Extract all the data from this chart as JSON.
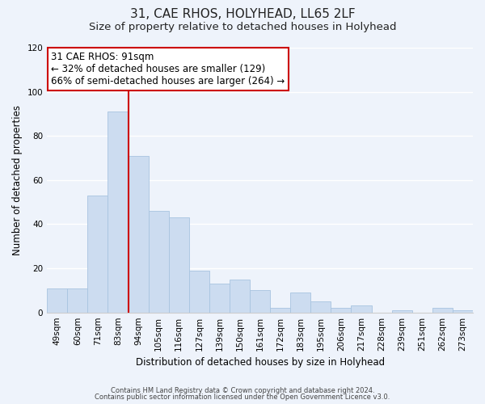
{
  "title": "31, CAE RHOS, HOLYHEAD, LL65 2LF",
  "subtitle": "Size of property relative to detached houses in Holyhead",
  "xlabel": "Distribution of detached houses by size in Holyhead",
  "ylabel": "Number of detached properties",
  "bar_labels": [
    "49sqm",
    "60sqm",
    "71sqm",
    "83sqm",
    "94sqm",
    "105sqm",
    "116sqm",
    "127sqm",
    "139sqm",
    "150sqm",
    "161sqm",
    "172sqm",
    "183sqm",
    "195sqm",
    "206sqm",
    "217sqm",
    "228sqm",
    "239sqm",
    "251sqm",
    "262sqm",
    "273sqm"
  ],
  "bar_values": [
    11,
    11,
    53,
    91,
    71,
    46,
    43,
    19,
    13,
    15,
    10,
    2,
    9,
    5,
    2,
    3,
    0,
    1,
    0,
    2,
    1
  ],
  "bar_color": "#ccdcf0",
  "bar_edge_color": "#a8c4e0",
  "vline_after_index": 3,
  "highlight_line_color": "#cc0000",
  "annotation_line1": "31 CAE RHOS: 91sqm",
  "annotation_line2": "← 32% of detached houses are smaller (129)",
  "annotation_line3": "66% of semi-detached houses are larger (264) →",
  "annotation_box_color": "white",
  "annotation_box_edge_color": "#cc0000",
  "ylim": [
    0,
    120
  ],
  "yticks": [
    0,
    20,
    40,
    60,
    80,
    100,
    120
  ],
  "footnote1": "Contains HM Land Registry data © Crown copyright and database right 2024.",
  "footnote2": "Contains public sector information licensed under the Open Government Licence v3.0.",
  "bg_color": "#eef3fb",
  "plot_bg_color": "#eef3fb",
  "grid_color": "#ffffff",
  "title_fontsize": 11,
  "subtitle_fontsize": 9.5,
  "axis_label_fontsize": 8.5,
  "tick_fontsize": 7.5,
  "annotation_fontsize": 8.5,
  "footnote_fontsize": 6.0
}
